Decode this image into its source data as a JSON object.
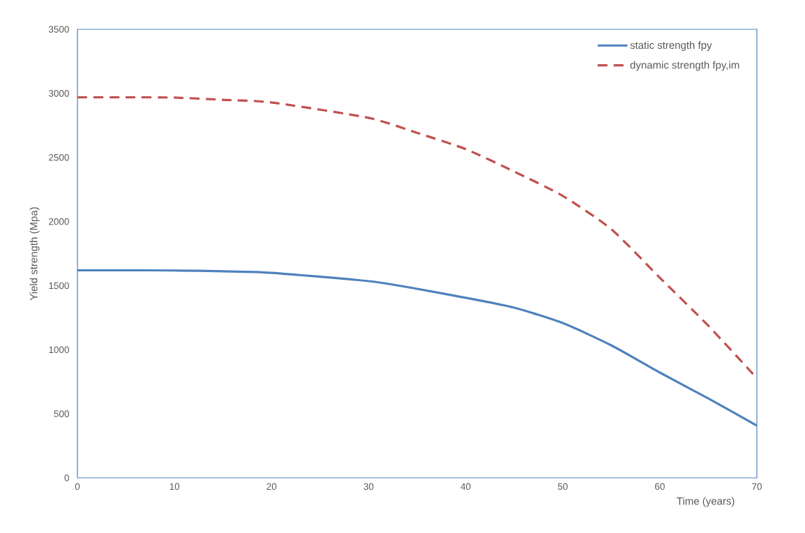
{
  "chart_data": {
    "type": "line",
    "xlabel": "Time (years)",
    "ylabel": "Yield strength (Mpa)",
    "x": [
      0,
      5,
      10,
      15,
      20,
      30,
      35,
      40,
      45,
      50,
      55,
      60,
      65,
      70
    ],
    "series": [
      {
        "name": "static strength fpy",
        "color": "#4f81bd",
        "line_style": "solid",
        "values": [
          1620,
          1620,
          1618,
          1612,
          1600,
          1535,
          1475,
          1405,
          1328,
          1208,
          1034,
          822,
          620,
          408
        ]
      },
      {
        "name": "dynamic strength fpy,im",
        "color": "#c0504d",
        "line_style": "dashed",
        "values": [
          2970,
          2970,
          2967,
          2950,
          2929,
          2809,
          2692,
          2565,
          2390,
          2200,
          1940,
          1562,
          1187,
          778
        ]
      }
    ],
    "xlim": [
      0,
      70
    ],
    "xticks": [
      0,
      10,
      20,
      30,
      40,
      50,
      60,
      70
    ],
    "ylim": [
      0,
      3500
    ],
    "yticks": [
      0,
      500,
      1000,
      1500,
      2000,
      2500,
      3000,
      3500
    ],
    "grid": false,
    "legend": "top right",
    "marker": "none"
  }
}
